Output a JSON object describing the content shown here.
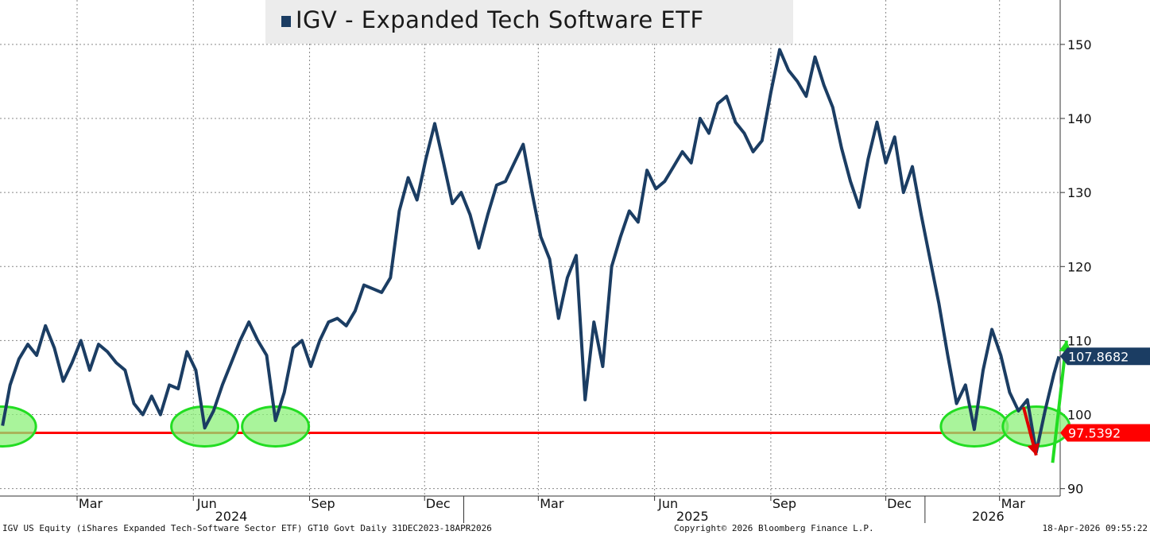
{
  "chart_data": {
    "type": "line",
    "title": "IGV - Expanded Tech Software ETF",
    "series": [
      {
        "name": "IGV - Expanded Tech Software ETF",
        "color": "#1b3d63",
        "points": [
          [
            "2024-01-02",
            98.5
          ],
          [
            "2024-01-08",
            104
          ],
          [
            "2024-01-15",
            107.5
          ],
          [
            "2024-01-22",
            109.5
          ],
          [
            "2024-01-29",
            108
          ],
          [
            "2024-02-05",
            112
          ],
          [
            "2024-02-12",
            109
          ],
          [
            "2024-02-19",
            104.5
          ],
          [
            "2024-02-26",
            107
          ],
          [
            "2024-03-04",
            110
          ],
          [
            "2024-03-11",
            106
          ],
          [
            "2024-03-18",
            109.5
          ],
          [
            "2024-03-25",
            108.5
          ],
          [
            "2024-04-01",
            107
          ],
          [
            "2024-04-08",
            106
          ],
          [
            "2024-04-15",
            101.5
          ],
          [
            "2024-04-22",
            100
          ],
          [
            "2024-04-29",
            102.5
          ],
          [
            "2024-05-06",
            100
          ],
          [
            "2024-05-13",
            104
          ],
          [
            "2024-05-20",
            103.5
          ],
          [
            "2024-05-27",
            108.5
          ],
          [
            "2024-06-03",
            106
          ],
          [
            "2024-06-10",
            98.2
          ],
          [
            "2024-06-17",
            100.5
          ],
          [
            "2024-06-24",
            104
          ],
          [
            "2024-07-01",
            107
          ],
          [
            "2024-07-08",
            110
          ],
          [
            "2024-07-15",
            112.5
          ],
          [
            "2024-07-22",
            110
          ],
          [
            "2024-07-29",
            108
          ],
          [
            "2024-08-05",
            99.2
          ],
          [
            "2024-08-12",
            103
          ],
          [
            "2024-08-19",
            109
          ],
          [
            "2024-08-26",
            110
          ],
          [
            "2024-09-02",
            106.5
          ],
          [
            "2024-09-09",
            110
          ],
          [
            "2024-09-16",
            112.5
          ],
          [
            "2024-09-23",
            113
          ],
          [
            "2024-09-30",
            112
          ],
          [
            "2024-10-07",
            114
          ],
          [
            "2024-10-14",
            117.5
          ],
          [
            "2024-10-21",
            117
          ],
          [
            "2024-10-28",
            116.5
          ],
          [
            "2024-11-04",
            118.5
          ],
          [
            "2024-11-11",
            127.5
          ],
          [
            "2024-11-18",
            132
          ],
          [
            "2024-11-25",
            129
          ],
          [
            "2024-12-02",
            134.5
          ],
          [
            "2024-12-09",
            139.3
          ],
          [
            "2024-12-16",
            134
          ],
          [
            "2024-12-23",
            128.5
          ],
          [
            "2024-12-30",
            130
          ],
          [
            "2025-01-06",
            127
          ],
          [
            "2025-01-13",
            122.5
          ],
          [
            "2025-01-20",
            127
          ],
          [
            "2025-01-27",
            131
          ],
          [
            "2025-02-03",
            131.5
          ],
          [
            "2025-02-10",
            134
          ],
          [
            "2025-02-17",
            136.5
          ],
          [
            "2025-02-24",
            130
          ],
          [
            "2025-03-03",
            124
          ],
          [
            "2025-03-10",
            121
          ],
          [
            "2025-03-17",
            113
          ],
          [
            "2025-03-24",
            118.5
          ],
          [
            "2025-03-31",
            121.5
          ],
          [
            "2025-04-07",
            102
          ],
          [
            "2025-04-14",
            112.5
          ],
          [
            "2025-04-21",
            106.5
          ],
          [
            "2025-04-28",
            120
          ],
          [
            "2025-05-05",
            124
          ],
          [
            "2025-05-12",
            127.5
          ],
          [
            "2025-05-19",
            126
          ],
          [
            "2025-05-26",
            133
          ],
          [
            "2025-06-02",
            130.5
          ],
          [
            "2025-06-09",
            131.5
          ],
          [
            "2025-06-16",
            133.5
          ],
          [
            "2025-06-23",
            135.5
          ],
          [
            "2025-06-30",
            134
          ],
          [
            "2025-07-07",
            140
          ],
          [
            "2025-07-14",
            138
          ],
          [
            "2025-07-21",
            142
          ],
          [
            "2025-07-28",
            143
          ],
          [
            "2025-08-04",
            139.5
          ],
          [
            "2025-08-11",
            138
          ],
          [
            "2025-08-18",
            135.5
          ],
          [
            "2025-08-25",
            137
          ],
          [
            "2025-09-01",
            143.5
          ],
          [
            "2025-09-08",
            149.3
          ],
          [
            "2025-09-15",
            146.5
          ],
          [
            "2025-09-22",
            145
          ],
          [
            "2025-09-29",
            143
          ],
          [
            "2025-10-06",
            148.3
          ],
          [
            "2025-10-13",
            144.5
          ],
          [
            "2025-10-20",
            141.5
          ],
          [
            "2025-10-27",
            136
          ],
          [
            "2025-11-03",
            131.5
          ],
          [
            "2025-11-10",
            128
          ],
          [
            "2025-11-17",
            134.5
          ],
          [
            "2025-11-24",
            139.5
          ],
          [
            "2025-12-01",
            134
          ],
          [
            "2025-12-08",
            137.5
          ],
          [
            "2025-12-15",
            130
          ],
          [
            "2025-12-22",
            133.5
          ],
          [
            "2025-12-29",
            127
          ],
          [
            "2026-01-05",
            121
          ],
          [
            "2026-01-12",
            115
          ],
          [
            "2026-01-19",
            108
          ],
          [
            "2026-01-26",
            101.5
          ],
          [
            "2026-02-02",
            104
          ],
          [
            "2026-02-09",
            98
          ],
          [
            "2026-02-16",
            106
          ],
          [
            "2026-02-23",
            111.5
          ],
          [
            "2026-03-02",
            108
          ],
          [
            "2026-03-09",
            103
          ],
          [
            "2026-03-16",
            100.5
          ],
          [
            "2026-03-23",
            102
          ],
          [
            "2026-03-30",
            94.9
          ],
          [
            "2026-04-06",
            100.5
          ],
          [
            "2026-04-13",
            105.5
          ],
          [
            "2026-04-17",
            107.8682
          ]
        ]
      }
    ],
    "y_axis": {
      "side": "right",
      "ylim": [
        89,
        156
      ],
      "ticks": [
        90,
        100,
        110,
        120,
        130,
        140,
        150
      ]
    },
    "x_axis": {
      "xlim": [
        "2023-12-31",
        "2026-04-18"
      ],
      "month_labels": [
        {
          "label": "Mar",
          "date": "2024-03-01"
        },
        {
          "label": "Jun",
          "date": "2024-06-01"
        },
        {
          "label": "Sep",
          "date": "2024-09-01"
        },
        {
          "label": "Dec",
          "date": "2024-12-01"
        },
        {
          "label": "Mar",
          "date": "2025-03-01"
        },
        {
          "label": "Jun",
          "date": "2025-06-01"
        },
        {
          "label": "Sep",
          "date": "2025-09-01"
        },
        {
          "label": "Dec",
          "date": "2025-12-01"
        },
        {
          "label": "Mar",
          "date": "2026-03-01"
        }
      ],
      "year_labels": [
        {
          "label": "2024",
          "date": "2024-07-01"
        },
        {
          "label": "2025",
          "date": "2025-07-01"
        },
        {
          "label": "2026",
          "date": "2026-02-20"
        }
      ],
      "year_separators": [
        "2025-01-01",
        "2026-01-01"
      ]
    },
    "last_value": {
      "label": "107.8682",
      "value": 107.8682,
      "color": "#1b3d63"
    },
    "support_line": {
      "label": "97.5392",
      "value": 97.5392,
      "color": "#ff0000"
    },
    "annotations": {
      "highlight_color": "#8cf07a",
      "highlight_stroke": "#22dd22",
      "support_touches": [
        "2024-01-02",
        "2024-06-10",
        "2024-08-05",
        "2026-02-09",
        "2026-03-30"
      ],
      "breakdown_arrow": {
        "from": [
          "2026-03-20",
          101
        ],
        "to": [
          "2026-03-30",
          94.5
        ],
        "color": "#dd0000"
      },
      "rebound_arrow": {
        "from": [
          "2026-04-12",
          93.5
        ],
        "to": [
          "2026-04-23",
          110
        ],
        "color": "#22dd22"
      }
    },
    "grid": true
  },
  "footer": {
    "left": "IGV US Equity (iShares Expanded Tech-Software Sector ETF) GT10  Govt Daily 31DEC2023-18APR2026",
    "center": "Copyright© 2026 Bloomberg Finance L.P.",
    "right": "18-Apr-2026 09:55:22"
  }
}
